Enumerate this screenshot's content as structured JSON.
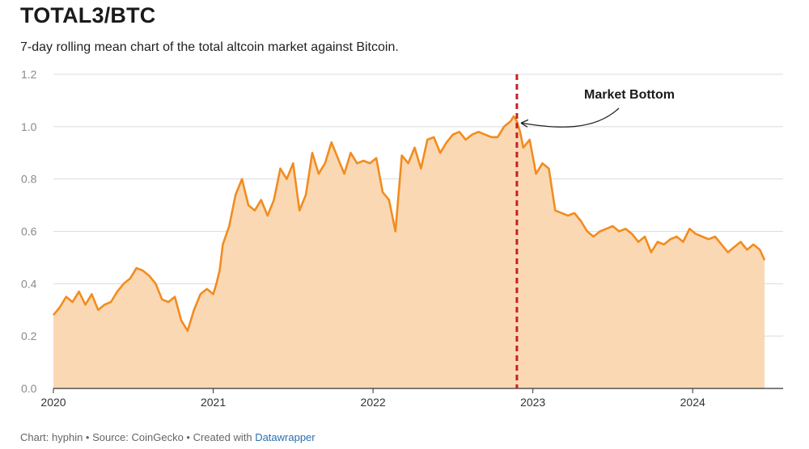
{
  "title": "TOTAL3/BTC",
  "subtitle": "7-day rolling mean chart of the total altcoin market against Bitcoin.",
  "footer": {
    "prefix": "Chart: hyphin • Source: CoinGecko • Created with ",
    "link": "Datawrapper"
  },
  "colors": {
    "line": "#f28c1e",
    "area": "#fbd8b4",
    "marker": "#c62027",
    "grid": "#dcdcdc"
  },
  "chart_data": {
    "type": "area",
    "title": "TOTAL3/BTC",
    "xlabel": "",
    "ylabel": "",
    "xlim": [
      2020.0,
      2024.5
    ],
    "ylim": [
      0,
      1.2
    ],
    "yticks": [
      "0.0",
      "0.2",
      "0.4",
      "0.6",
      "0.8",
      "1.0",
      "1.2"
    ],
    "xticks": [
      "2020",
      "2021",
      "2022",
      "2023",
      "2024"
    ],
    "grid": true,
    "annotation": {
      "label": "Market Bottom",
      "x": 2022.9,
      "y": 1.02
    },
    "series": [
      {
        "x": [
          2020.0,
          2020.04,
          2020.08,
          2020.12,
          2020.16,
          2020.2,
          2020.24,
          2020.28,
          2020.32,
          2020.36,
          2020.4,
          2020.44,
          2020.48,
          2020.52,
          2020.56,
          2020.6,
          2020.64,
          2020.68,
          2020.72,
          2020.76,
          2020.8,
          2020.84,
          2020.88,
          2020.92,
          2020.96,
          2021.0,
          2021.02,
          2021.04,
          2021.06,
          2021.1,
          2021.14,
          2021.18,
          2021.22,
          2021.26,
          2021.3,
          2021.34,
          2021.38,
          2021.42,
          2021.46,
          2021.5,
          2021.54,
          2021.58,
          2021.62,
          2021.66,
          2021.7,
          2021.74,
          2021.78,
          2021.82,
          2021.86,
          2021.9,
          2021.94,
          2021.98,
          2022.02,
          2022.06,
          2022.1,
          2022.14,
          2022.18,
          2022.22,
          2022.26,
          2022.3,
          2022.34,
          2022.38,
          2022.42,
          2022.46,
          2022.5,
          2022.54,
          2022.58,
          2022.62,
          2022.66,
          2022.7,
          2022.74,
          2022.78,
          2022.82,
          2022.86,
          2022.88,
          2022.9,
          2022.92,
          2022.94,
          2022.98,
          2023.02,
          2023.06,
          2023.1,
          2023.14,
          2023.18,
          2023.22,
          2023.26,
          2023.3,
          2023.34,
          2023.38,
          2023.42,
          2023.46,
          2023.5,
          2023.54,
          2023.58,
          2023.62,
          2023.66,
          2023.7,
          2023.74,
          2023.78,
          2023.82,
          2023.86,
          2023.9,
          2023.94,
          2023.98,
          2024.02,
          2024.06,
          2024.1,
          2024.14,
          2024.18,
          2024.22,
          2024.26,
          2024.3,
          2024.34,
          2024.38,
          2024.42,
          2024.45
        ],
        "values": [
          0.28,
          0.31,
          0.35,
          0.33,
          0.37,
          0.32,
          0.36,
          0.3,
          0.32,
          0.33,
          0.37,
          0.4,
          0.42,
          0.46,
          0.45,
          0.43,
          0.4,
          0.34,
          0.33,
          0.35,
          0.26,
          0.22,
          0.3,
          0.36,
          0.38,
          0.36,
          0.4,
          0.45,
          0.55,
          0.62,
          0.74,
          0.8,
          0.7,
          0.68,
          0.72,
          0.66,
          0.72,
          0.84,
          0.8,
          0.86,
          0.68,
          0.74,
          0.9,
          0.82,
          0.86,
          0.94,
          0.88,
          0.82,
          0.9,
          0.86,
          0.87,
          0.86,
          0.88,
          0.75,
          0.72,
          0.6,
          0.89,
          0.86,
          0.92,
          0.84,
          0.95,
          0.96,
          0.9,
          0.94,
          0.97,
          0.98,
          0.95,
          0.97,
          0.98,
          0.97,
          0.96,
          0.96,
          1.0,
          1.02,
          1.04,
          1.02,
          0.98,
          0.92,
          0.95,
          0.82,
          0.86,
          0.84,
          0.68,
          0.67,
          0.66,
          0.67,
          0.64,
          0.6,
          0.58,
          0.6,
          0.61,
          0.62,
          0.6,
          0.61,
          0.59,
          0.56,
          0.58,
          0.52,
          0.56,
          0.55,
          0.57,
          0.58,
          0.56,
          0.61,
          0.59,
          0.58,
          0.57,
          0.58,
          0.55,
          0.52,
          0.54,
          0.56,
          0.53,
          0.55,
          0.53,
          0.49
        ]
      }
    ]
  }
}
